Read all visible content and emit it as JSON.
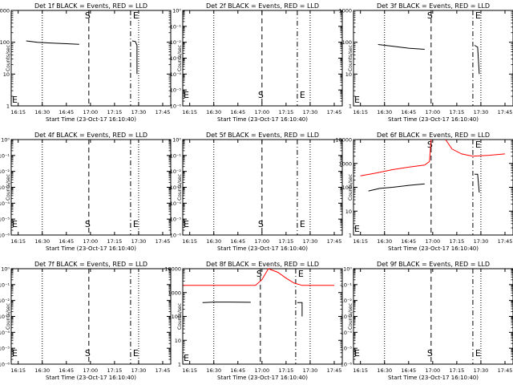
{
  "window": {
    "x_tick_labels": [
      "16:15",
      "16:30",
      "16:45",
      "17:00",
      "17:15",
      "17:30",
      "17:45"
    ],
    "xlabel": "Start Time (23-Oct-17 16:10:40)",
    "ylabel": "Counts/sec",
    "ytick_labels_a": [
      "1",
      "10",
      "100",
      "1000"
    ],
    "ytick_labels_b": [
      "10⁰",
      "10⁻¹",
      "10⁻²",
      "10⁻³",
      "10⁻⁴",
      "10⁻⁵",
      "10⁻⁶"
    ],
    "ytick_labels_c": [
      "1",
      "10",
      "100",
      "1000",
      "10000"
    ],
    "s_marker": "S",
    "e_marker": "E"
  },
  "chart_data": [
    {
      "type": "line",
      "title": "Det 1f BLACK = Events, RED = LLD",
      "ylabel": "Counts/sec",
      "xlabel": "Start Time (23-Oct-17 16:10:40)",
      "yscale": "log",
      "ylim": [
        1,
        1000
      ],
      "s_time": "16:59",
      "e_time": "17:25",
      "series": [
        {
          "color": "#000000",
          "points": [
            [
              "16:20",
              110
            ],
            [
              "16:27",
              100
            ],
            [
              "16:35",
              95
            ],
            [
              "16:45",
              90
            ],
            [
              "16:53",
              86
            ]
          ]
        },
        {
          "color": "#000000",
          "points": [
            [
              "17:26",
              110
            ],
            [
              "17:28",
              105
            ],
            [
              "17:29",
              80
            ],
            [
              "17:29",
              10
            ]
          ]
        }
      ]
    },
    {
      "type": "line",
      "title": "Det 2f BLACK = Events, RED = LLD",
      "ylabel": "Counts/sec",
      "xlabel": "Start Time (23-Oct-17 16:10:40)",
      "yscale": "log",
      "ylim": [
        1,
        1000000
      ],
      "s_time": "17:00",
      "e_time": "17:22",
      "series": []
    },
    {
      "type": "line",
      "title": "Det 3f BLACK = Events, RED = LLD",
      "ylabel": "Counts/sec",
      "xlabel": "Start Time (23-Oct-17 16:10:40)",
      "yscale": "log",
      "ylim": [
        1,
        1000
      ],
      "s_time": "16:59",
      "e_time": "17:25",
      "series": [
        {
          "color": "#000000",
          "points": [
            [
              "16:26",
              85
            ],
            [
              "16:35",
              75
            ],
            [
              "16:45",
              65
            ],
            [
              "16:55",
              60
            ]
          ]
        },
        {
          "color": "#000000",
          "points": [
            [
              "17:26",
              80
            ],
            [
              "17:28",
              70
            ],
            [
              "17:29",
              10
            ]
          ]
        }
      ]
    },
    {
      "type": "line",
      "title": "Det 4f BLACK = Events, RED = LLD",
      "ylabel": "Counts/sec",
      "xlabel": "Start Time (23-Oct-17 16:10:40)",
      "yscale": "log",
      "ylim": [
        1,
        1000000
      ],
      "s_time": "16:59",
      "e_time": "17:25",
      "series": []
    },
    {
      "type": "line",
      "title": "Det 5f BLACK = Events, RED = LLD",
      "ylabel": "Counts/sec",
      "xlabel": "Start Time (23-Oct-17 16:10:40)",
      "yscale": "log",
      "ylim": [
        1,
        1000000
      ],
      "s_time": "17:00",
      "e_time": "17:22",
      "series": []
    },
    {
      "type": "line",
      "title": "Det 6f BLACK = Events, RED = LLD",
      "ylabel": "Counts/sec",
      "xlabel": "Start Time (23-Oct-17 16:10:40)",
      "yscale": "log",
      "ylim": [
        1,
        10000
      ],
      "s_time": "16:59",
      "e_time": "17:25",
      "series": [
        {
          "color": "#ff0000",
          "points": [
            [
              "16:15",
              300
            ],
            [
              "16:25",
              400
            ],
            [
              "16:35",
              550
            ],
            [
              "16:45",
              700
            ],
            [
              "16:55",
              850
            ],
            [
              "16:58",
              1200
            ],
            [
              "16:59",
              10000
            ]
          ]
        },
        {
          "color": "#ff0000",
          "points": [
            [
              "17:08",
              10000
            ],
            [
              "17:12",
              4000
            ],
            [
              "17:18",
              2500
            ],
            [
              "17:25",
              2000
            ],
            [
              "17:35",
              2200
            ],
            [
              "17:45",
              2500
            ]
          ]
        },
        {
          "color": "#000000",
          "points": [
            [
              "16:20",
              70
            ],
            [
              "16:27",
              90
            ],
            [
              "16:35",
              100
            ],
            [
              "16:45",
              120
            ],
            [
              "16:55",
              140
            ]
          ]
        },
        {
          "color": "#000000",
          "points": [
            [
              "17:26",
              350
            ],
            [
              "17:28",
              350
            ],
            [
              "17:29",
              60
            ]
          ]
        }
      ]
    },
    {
      "type": "line",
      "title": "Det 7f BLACK = Events, RED = LLD",
      "ylabel": "Counts/sec",
      "xlabel": "Start Time (23-Oct-17 16:10:40)",
      "yscale": "log",
      "ylim": [
        1,
        1000000
      ],
      "s_time": "16:59",
      "e_time": "17:25",
      "series": []
    },
    {
      "type": "line",
      "title": "Det 8f BLACK = Events, RED = LLD",
      "ylabel": "Counts/sec",
      "xlabel": "Start Time (23-Oct-17 16:10:40)",
      "yscale": "log",
      "ylim": [
        1,
        10000
      ],
      "s_time": "16:59",
      "e_time": "17:21",
      "series": [
        {
          "color": "#ff0000",
          "points": [
            [
              "16:11",
              2000
            ],
            [
              "16:40",
              2000
            ],
            [
              "16:56",
              2000
            ],
            [
              "17:00",
              3500
            ],
            [
              "17:04",
              10000
            ],
            [
              "17:10",
              7000
            ],
            [
              "17:15",
              4000
            ],
            [
              "17:20",
              2500
            ],
            [
              "17:25",
              2000
            ],
            [
              "17:45",
              2000
            ]
          ]
        },
        {
          "color": "#000000",
          "points": [
            [
              "16:23",
              380
            ],
            [
              "16:30",
              400
            ],
            [
              "16:40",
              400
            ],
            [
              "16:53",
              390
            ]
          ]
        },
        {
          "color": "#000000",
          "points": [
            [
              "17:22",
              380
            ],
            [
              "17:25",
              380
            ],
            [
              "17:25",
              100
            ]
          ]
        }
      ]
    },
    {
      "type": "line",
      "title": "Det 9f BLACK = Events, RED = LLD",
      "ylabel": "Counts/sec",
      "xlabel": "Start Time (23-Oct-17 16:10:40)",
      "yscale": "log",
      "ylim": [
        1,
        1000000
      ],
      "s_time": "16:59",
      "e_time": "17:25",
      "series": []
    }
  ]
}
